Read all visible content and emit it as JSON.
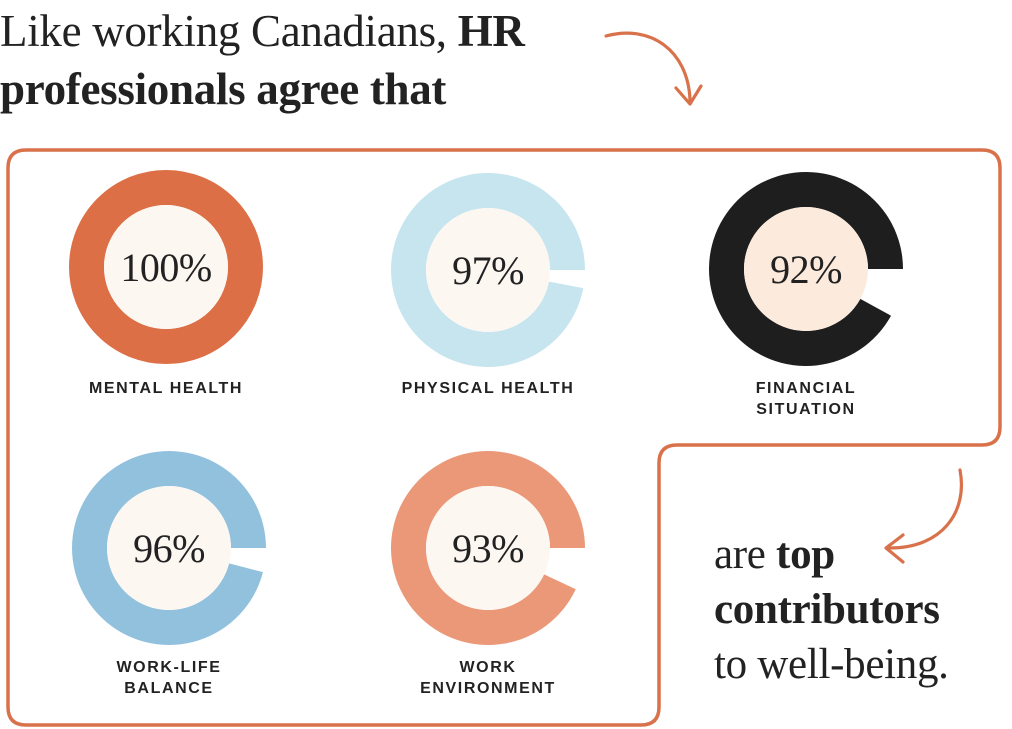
{
  "headline": {
    "line1_regular": "Like working Canadians, ",
    "line1_bold": "HR",
    "line2_bold": "professionals agree that"
  },
  "closing": {
    "line1_regular": "are ",
    "line1_bold": "top",
    "line2_bold": "contributors",
    "line3_regular": "to well-being."
  },
  "colors": {
    "accent": "#D9714A",
    "inner_fill": "#FDF7F2",
    "text": "#222222"
  },
  "chart_data": {
    "type": "donut",
    "unit": "%",
    "items": [
      {
        "label": "MENTAL HEALTH",
        "value": 100,
        "display": "100%",
        "color": "#DC6F45",
        "inner": "#FDF7F2"
      },
      {
        "label": "PHYSICAL HEALTH",
        "value": 97,
        "display": "97%",
        "color": "#C6E5EF",
        "inner": "#FDF7F2"
      },
      {
        "label": "FINANCIAL SITUATION",
        "value": 92,
        "display": "92%",
        "color": "#1E1E1E",
        "inner": "#FCEBDD"
      },
      {
        "label": "WORK-LIFE BALANCE",
        "value": 96,
        "display": "96%",
        "color": "#92C1DE",
        "inner": "#FDF7F2"
      },
      {
        "label": "WORK ENVIRONMENT",
        "value": 93,
        "display": "93%",
        "color": "#EB9878",
        "inner": "#FDF7F2"
      }
    ]
  }
}
